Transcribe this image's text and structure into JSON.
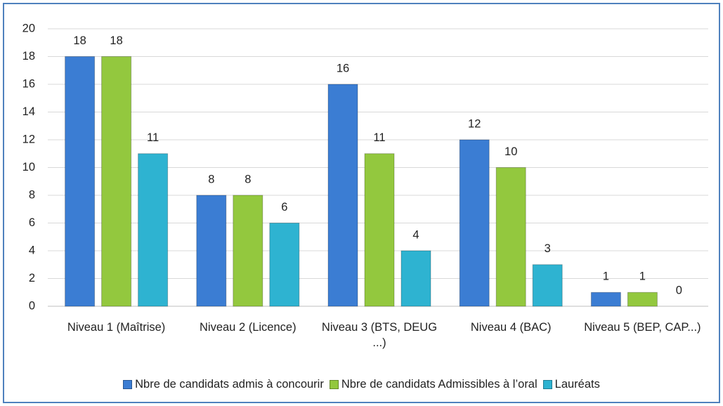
{
  "chart_data": {
    "type": "bar",
    "categories": [
      "Niveau 1 (Maîtrise)",
      "Niveau 2 (Licence)",
      "Niveau 3 (BTS, DEUG ...)",
      "Niveau 4 (BAC)",
      "Niveau 5 (BEP, CAP...)"
    ],
    "series": [
      {
        "name": "Nbre de candidats admis à concourir",
        "color": "#3b7dd3",
        "values": [
          18,
          8,
          16,
          12,
          1
        ]
      },
      {
        "name": "Nbre de candidats Admissibles à l’oral",
        "color": "#93c83e",
        "values": [
          18,
          8,
          11,
          10,
          1
        ]
      },
      {
        "name": "Lauréats",
        "color": "#2eb3d1",
        "values": [
          11,
          6,
          4,
          3,
          0
        ]
      }
    ],
    "ylim": [
      0,
      20
    ],
    "yticks": [
      0,
      2,
      4,
      6,
      8,
      10,
      12,
      14,
      16,
      18,
      20
    ],
    "grid": true,
    "legend": "bottom"
  }
}
